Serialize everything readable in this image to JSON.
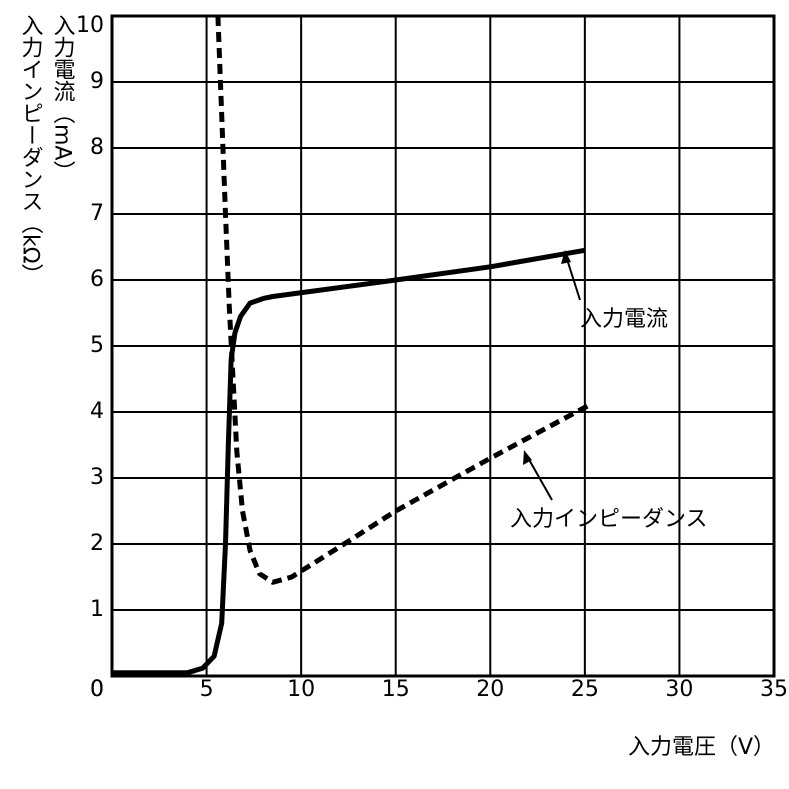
{
  "chart_data": {
    "type": "line",
    "ylabel": [
      "入力電流（mA）",
      "入力インピーダンス（kΩ）"
    ],
    "xlabel": "入力電圧（V）",
    "xlim": [
      0,
      35
    ],
    "xticks": [
      0,
      5,
      10,
      15,
      20,
      25,
      30,
      35
    ],
    "ylim": [
      0,
      10
    ],
    "yticks": [
      0,
      1,
      2,
      3,
      4,
      5,
      6,
      7,
      8,
      9,
      10
    ],
    "grid": true,
    "series": [
      {
        "name": "入力電流",
        "color": "#000000",
        "style": "solid",
        "x": [
          0,
          4,
          4.8,
          5.4,
          5.8,
          6.0,
          6.15,
          6.3,
          6.5,
          6.8,
          7.3,
          8.0,
          8.5,
          15,
          20,
          25
        ],
        "values": [
          0.05,
          0.05,
          0.12,
          0.3,
          0.8,
          2.0,
          3.5,
          4.8,
          5.2,
          5.45,
          5.65,
          5.72,
          5.75,
          6.0,
          6.2,
          6.45
        ]
      },
      {
        "name": "入力インピーダンス",
        "color": "#000000",
        "style": "dashed",
        "x": [
          5.6,
          5.8,
          6.0,
          6.2,
          6.4,
          6.6,
          6.9,
          7.3,
          7.8,
          8.5,
          9.5,
          12,
          15,
          20,
          25.2
        ],
        "values": [
          10,
          8.5,
          7.0,
          5.6,
          4.5,
          3.4,
          2.5,
          1.9,
          1.55,
          1.42,
          1.5,
          1.95,
          2.5,
          3.3,
          4.1
        ]
      }
    ]
  }
}
